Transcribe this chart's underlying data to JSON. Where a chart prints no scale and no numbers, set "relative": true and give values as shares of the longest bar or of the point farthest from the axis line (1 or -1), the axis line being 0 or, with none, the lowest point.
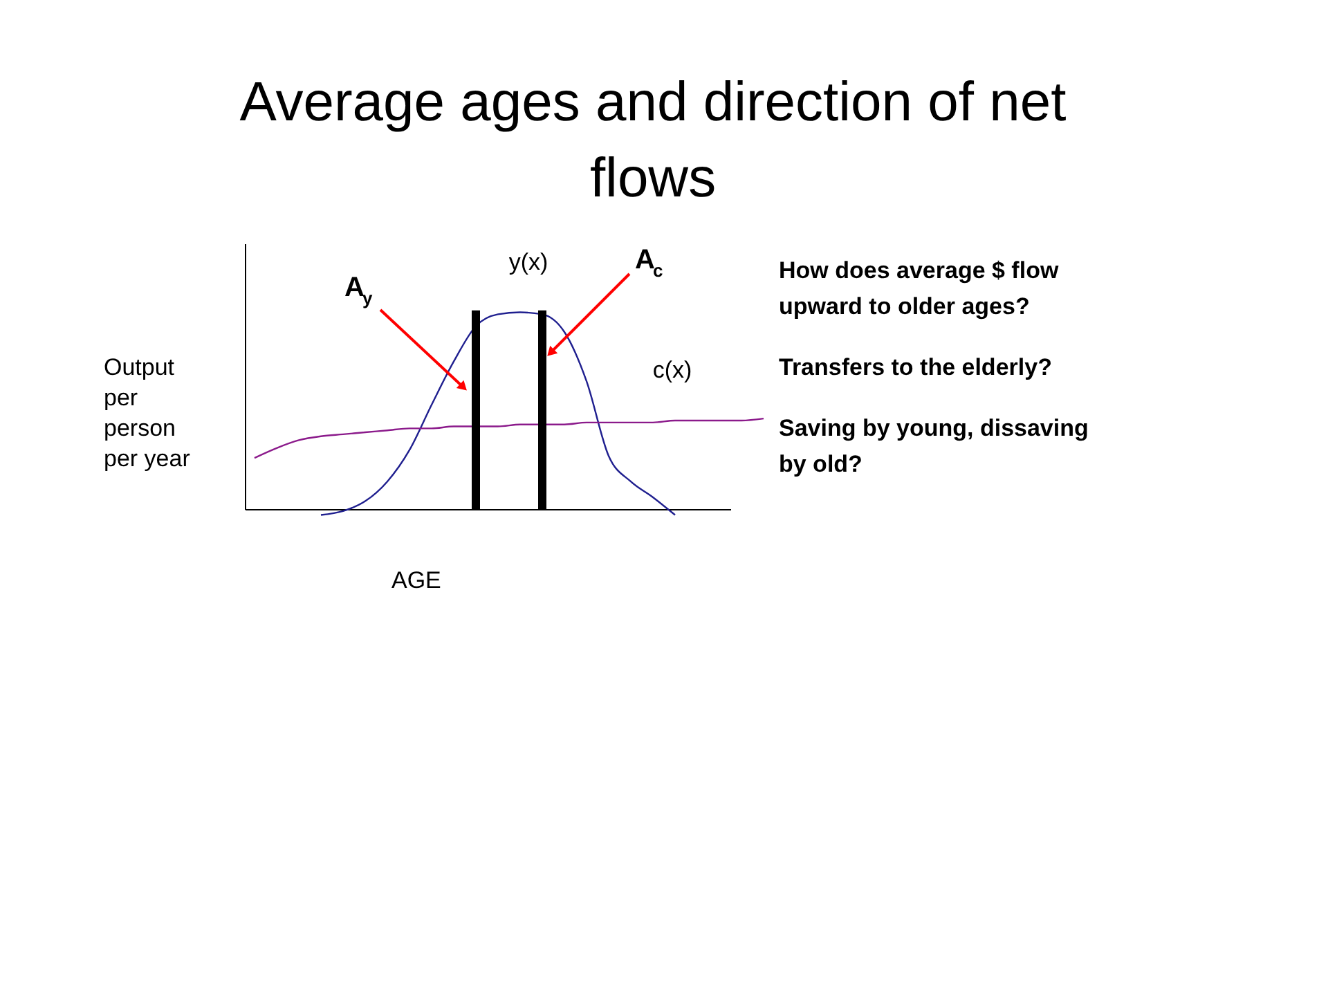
{
  "chart_data": {
    "type": "line",
    "title": "Average ages and direction of net flows",
    "xlabel": "AGE",
    "ylabel": "Output per person per year",
    "relative": true,
    "legend": false,
    "marker": "none",
    "categories": [
      null,
      null,
      null,
      null,
      null,
      null,
      null,
      null,
      null,
      null,
      null,
      null,
      null,
      null,
      null,
      null,
      null,
      null,
      null,
      null,
      null,
      null,
      null,
      null
    ],
    "series": [
      {
        "name": "y(x)",
        "color": "#1f1f8f",
        "values": [
          null,
          null,
          null,
          -0.03,
          -0.01,
          0.04,
          0.14,
          0.3,
          0.53,
          0.75,
          0.93,
          0.99,
          1,
          0.99,
          0.9,
          0.65,
          0.27,
          0.14,
          0.06,
          -0.03,
          null,
          null,
          null,
          null
        ]
      },
      {
        "name": "c(x)",
        "color": "#8b1a8b",
        "values": [
          0.26,
          0.31,
          0.35,
          0.37,
          0.38,
          0.39,
          0.4,
          0.41,
          0.41,
          0.42,
          0.42,
          0.42,
          0.43,
          0.43,
          0.43,
          0.44,
          0.44,
          0.44,
          0.44,
          0.45,
          0.45,
          0.45,
          0.45,
          0.46
        ]
      }
    ],
    "annotations": [
      "A$_{y}$",
      "A$_{c}$",
      "How does average $ flow upward to older ages?",
      "Transfers to the elderly?",
      "Saving by young, dissaving by old?"
    ]
  }
}
